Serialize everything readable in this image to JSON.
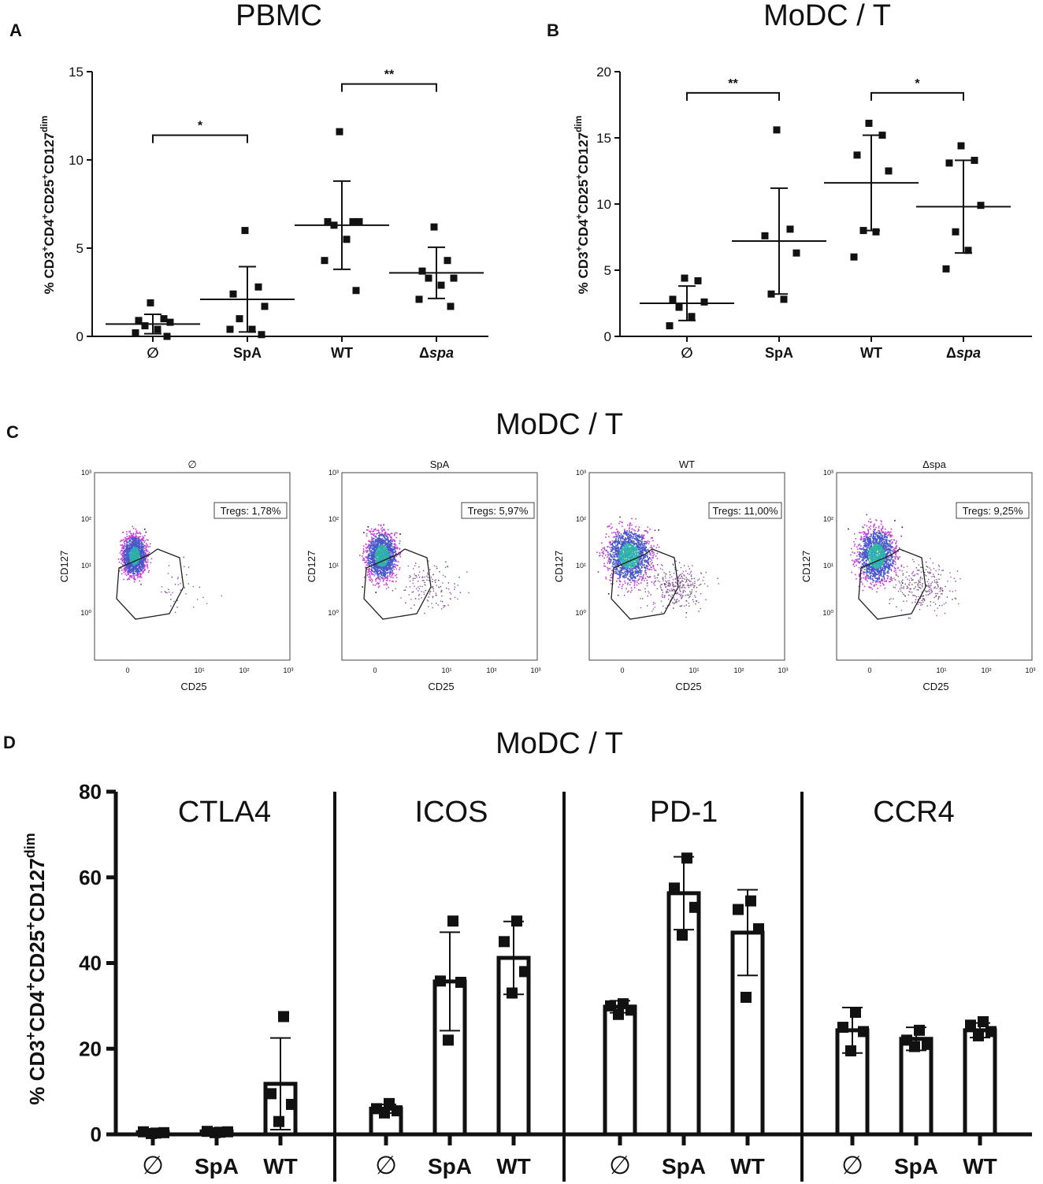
{
  "chart_data": [
    {
      "panel": "A",
      "type": "scatter",
      "title": "PBMC",
      "ylabel": "% CD3+CD4+CD25+CD127dim",
      "ylim": [
        0,
        15
      ],
      "yticks": [
        "0",
        "5",
        "10",
        "15"
      ],
      "categories": [
        "∅",
        "SpA",
        "WT",
        "Δspa"
      ],
      "points": [
        [
          1.9,
          1.0,
          0.9,
          0.8,
          0.6,
          0.4,
          0.2,
          0.0
        ],
        [
          6.0,
          2.8,
          2.4,
          1.7,
          1.0,
          0.4,
          0.4,
          0.1
        ],
        [
          11.6,
          6.5,
          6.5,
          6.5,
          6.3,
          5.5,
          4.3,
          2.6
        ],
        [
          6.2,
          4.3,
          3.7,
          3.3,
          3.3,
          2.9,
          2.1,
          1.7
        ]
      ],
      "mean": [
        0.7,
        2.1,
        6.3,
        3.6
      ],
      "sd": [
        0.55,
        1.85,
        2.5,
        1.45
      ],
      "significance": [
        {
          "from": 0,
          "to": 1,
          "label": "*",
          "y": 11.4
        },
        {
          "from": 2,
          "to": 3,
          "label": "**",
          "y": 14.3
        }
      ]
    },
    {
      "panel": "B",
      "type": "scatter",
      "title": "MoDC / T",
      "ylabel": "% CD3+CD4+CD25+CD127dim",
      "ylim": [
        0,
        20
      ],
      "yticks": [
        "0",
        "5",
        "10",
        "15",
        "20"
      ],
      "categories": [
        "∅",
        "SpA",
        "WT",
        "Δspa"
      ],
      "points": [
        [
          4.4,
          4.2,
          2.8,
          2.6,
          2.2,
          1.5,
          0.8
        ],
        [
          15.6,
          8.1,
          7.6,
          6.3,
          3.2,
          2.8
        ],
        [
          16.1,
          15.2,
          13.7,
          12.5,
          8.0,
          7.9,
          6.0
        ],
        [
          14.4,
          13.3,
          13.1,
          9.9,
          7.9,
          6.5,
          5.1
        ]
      ],
      "mean": [
        2.5,
        7.2,
        11.6,
        9.8
      ],
      "sd": [
        1.3,
        4.0,
        3.6,
        3.5
      ],
      "significance": [
        {
          "from": 0,
          "to": 1,
          "label": "**",
          "y": 18.4
        },
        {
          "from": 2,
          "to": 3,
          "label": "*",
          "y": 18.4
        }
      ]
    },
    {
      "panel": "C",
      "type": "scatter",
      "title": "MoDC / T",
      "xlabel": "CD25",
      "ylabel": "CD127",
      "plots": [
        {
          "title": "∅",
          "gate_label": "Tregs: 1,78%"
        },
        {
          "title": "SpA",
          "gate_label": "Tregs: 5,97%"
        },
        {
          "title": "WT",
          "gate_label": "Tregs: 11,00%"
        },
        {
          "title": "Δspa",
          "gate_label": "Tregs: 9,25%"
        }
      ],
      "x_ticks": [
        "0",
        "10¹",
        "10²",
        "10³"
      ],
      "y_ticks": [
        "10⁰",
        "10¹",
        "10²",
        "10³"
      ]
    },
    {
      "panel": "D",
      "type": "bar",
      "title": "MoDC / T",
      "ylabel": "% CD3+CD4+CD25+CD127dim",
      "ylim": [
        0,
        80
      ],
      "yticks": [
        "0",
        "20",
        "40",
        "60",
        "80"
      ],
      "groups": [
        {
          "name": "CTLA4",
          "categories": [
            "∅",
            "SpA",
            "WT"
          ],
          "values": [
            0.5,
            0.7,
            11.8
          ],
          "sd": [
            0.4,
            0.4,
            10.7
          ],
          "points": [
            [
              0.3,
              0.6,
              0.4,
              0.2
            ],
            [
              0.5,
              0.7,
              0.6,
              0.4
            ],
            [
              27.5,
              9.5,
              7.0,
              3.0
            ]
          ]
        },
        {
          "name": "ICOS",
          "categories": [
            "∅",
            "SpA",
            "WT"
          ],
          "values": [
            6.0,
            35.7,
            41.2
          ],
          "sd": [
            1.0,
            11.5,
            8.5
          ],
          "points": [
            [
              7.2,
              6.0,
              5.5,
              5.0
            ],
            [
              49.8,
              35.8,
              35.5,
              22.0
            ],
            [
              49.8,
              45.0,
              38.0,
              33.0
            ]
          ]
        },
        {
          "name": "PD-1",
          "categories": [
            "∅",
            "SpA",
            "WT"
          ],
          "values": [
            29.8,
            56.3,
            47.1
          ],
          "sd": [
            1.4,
            8.5,
            10.0
          ],
          "points": [
            [
              30.5,
              30.0,
              29.0,
              28.0
            ],
            [
              64.5,
              57.5,
              53.0,
              46.5
            ],
            [
              54.5,
              52.5,
              48.0,
              32.0
            ]
          ]
        },
        {
          "name": "CCR4",
          "categories": [
            "∅",
            "SpA",
            "WT"
          ],
          "values": [
            24.3,
            22.3,
            24.3
          ],
          "sd": [
            5.3,
            2.7,
            1.7
          ],
          "points": [
            [
              28.5,
              25.0,
              24.0,
              19.5
            ],
            [
              24.3,
              22.0,
              21.0,
              20.5
            ],
            [
              26.3,
              25.5,
              24.0,
              23.0
            ]
          ]
        }
      ]
    }
  ],
  "labels": {
    "panel_a": "A",
    "panel_b": "B",
    "panel_c": "C",
    "panel_d": "D",
    "ylabel_parts": {
      "pct": "% CD3",
      "cd4": "CD4",
      "cd25": "CD25",
      "cd127": "CD127",
      "plus": "+",
      "dim": "dim"
    }
  }
}
